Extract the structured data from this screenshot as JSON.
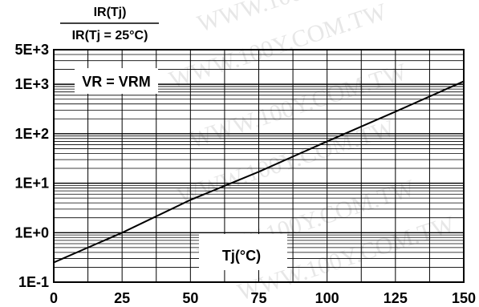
{
  "chart_data": {
    "type": "line",
    "ylabel_numerator": "IR(Tj)",
    "ylabel_denominator": "IR(Tj = 25°C)",
    "xlabel": "Tj(°C)",
    "annotation": "VR = VRM",
    "watermark": "WWW.100Y.COM.TW",
    "y_scale": "log",
    "grid": true,
    "x_ticks": [
      "0",
      "25",
      "50",
      "75",
      "100",
      "125",
      "150"
    ],
    "y_ticks": [
      "1E-1",
      "1E+0",
      "1E+1",
      "1E+2",
      "1E+3",
      "5E+3"
    ],
    "xlim": [
      0,
      150
    ],
    "ylim": [
      0.1,
      5000
    ],
    "series": [
      {
        "x": [
          0,
          25,
          50,
          75,
          100,
          125,
          150
        ],
        "y": [
          0.25,
          1.0,
          4.6,
          17,
          70,
          280,
          1150
        ]
      }
    ],
    "colors": {
      "line": "#000000",
      "grid": "#000000",
      "watermark": "#e7e7e7"
    }
  }
}
